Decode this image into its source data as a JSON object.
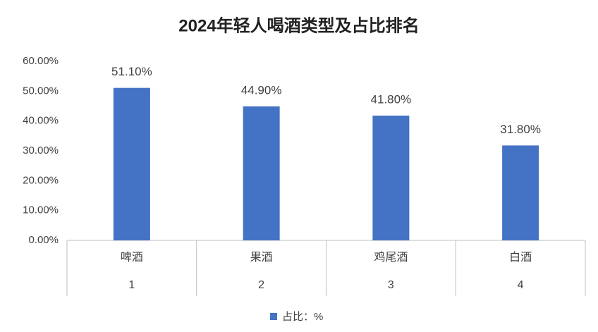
{
  "chart_data": {
    "type": "bar",
    "title": "2024年轻人喝酒类型及占比排名",
    "categories": [
      "啤酒",
      "果酒",
      "鸡尾酒",
      "白酒"
    ],
    "category_numbers": [
      "1",
      "2",
      "3",
      "4"
    ],
    "series": [
      {
        "name": "占比：%",
        "color": "#4472c4",
        "values": [
          51.1,
          44.9,
          41.8,
          31.8
        ],
        "value_labels": [
          "51.10%",
          "44.90%",
          "41.80%",
          "31.80%"
        ]
      }
    ],
    "ylim": [
      0,
      60
    ],
    "yticks": [
      {
        "value": 0,
        "label": "0.00%"
      },
      {
        "value": 10,
        "label": "10.00%"
      },
      {
        "value": 20,
        "label": "20.00%"
      },
      {
        "value": 30,
        "label": "30.00%"
      },
      {
        "value": 40,
        "label": "40.00%"
      },
      {
        "value": 50,
        "label": "50.00%"
      },
      {
        "value": 60,
        "label": "60.00%"
      }
    ],
    "grid": false,
    "legend": "bottom"
  }
}
